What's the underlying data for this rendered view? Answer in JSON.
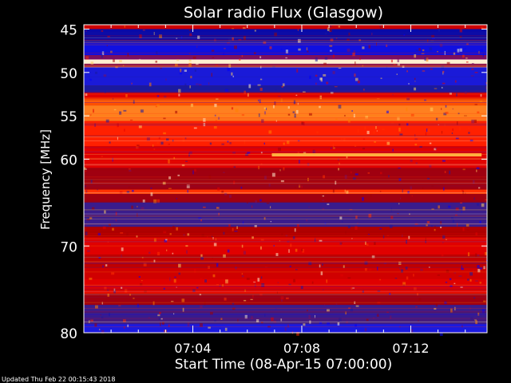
{
  "chart_data": {
    "type": "heatmap",
    "title": "Solar radio Flux (Glasgow)",
    "xlabel": "Start Time (08-Apr-15 07:00:00)",
    "ylabel": "Frequency [MHz]",
    "x_ticks": [
      "07:04",
      "07:08",
      "07:12"
    ],
    "y_ticks": [
      "45",
      "50",
      "55",
      "60",
      "70",
      "80"
    ],
    "y_tick_values": [
      45,
      50,
      55,
      60,
      70,
      80
    ],
    "x_tick_minutes": [
      4,
      8,
      12
    ],
    "xlim_minutes": [
      0,
      14.8
    ],
    "ylim": [
      44.5,
      80
    ],
    "grid": false,
    "colormap": [
      "#1a1aa0",
      "#0000ff",
      "#7a1060",
      "#a00000",
      "#e00000",
      "#ff3000",
      "#ff8000",
      "#ffd060",
      "#fff0d0"
    ],
    "bands": [
      {
        "from": 44.5,
        "to": 45.0,
        "color": "#cc0000"
      },
      {
        "from": 45.0,
        "to": 46.5,
        "color": "#0a0aa8"
      },
      {
        "from": 46.5,
        "to": 48.0,
        "color": "#1010e0"
      },
      {
        "from": 48.0,
        "to": 48.5,
        "color": "#7a1060"
      },
      {
        "from": 48.5,
        "to": 49.0,
        "color": "#fff0d0"
      },
      {
        "from": 49.0,
        "to": 49.4,
        "color": "#8a1050"
      },
      {
        "from": 49.4,
        "to": 51.5,
        "color": "#1a1ad8"
      },
      {
        "from": 51.5,
        "to": 52.3,
        "color": "#1a1aa0"
      },
      {
        "from": 52.3,
        "to": 53.0,
        "color": "#e00000"
      },
      {
        "from": 53.0,
        "to": 53.8,
        "color": "#ff5000"
      },
      {
        "from": 53.8,
        "to": 55.6,
        "color": "#ff8020"
      },
      {
        "from": 55.6,
        "to": 58.5,
        "color": "#ff2000"
      },
      {
        "from": 58.5,
        "to": 61.0,
        "color": "#e00000"
      },
      {
        "from": 61.0,
        "to": 63.5,
        "color": "#a00010"
      },
      {
        "from": 63.5,
        "to": 64.0,
        "color": "#ff3000"
      },
      {
        "from": 64.0,
        "to": 65.0,
        "color": "#a00010"
      },
      {
        "from": 65.0,
        "to": 67.8,
        "color": "#3a1c8c"
      },
      {
        "from": 67.8,
        "to": 69.0,
        "color": "#b00000"
      },
      {
        "from": 69.0,
        "to": 71.0,
        "color": "#e00000"
      },
      {
        "from": 71.0,
        "to": 72.5,
        "color": "#c00000"
      },
      {
        "from": 72.5,
        "to": 73.8,
        "color": "#d00000"
      },
      {
        "from": 73.8,
        "to": 75.5,
        "color": "#e00000"
      },
      {
        "from": 75.5,
        "to": 76.8,
        "color": "#a00010"
      },
      {
        "from": 76.8,
        "to": 79.0,
        "color": "#3a1c8c"
      },
      {
        "from": 79.0,
        "to": 80.0,
        "color": "#1a1ae0"
      }
    ],
    "burst": {
      "t_start": 6.9,
      "t_end": 14.6,
      "freq": 59.5,
      "color": "#ffb040"
    }
  },
  "footer": {
    "updated_text": "Updated Thu Feb 22 00:15:43 2018"
  }
}
